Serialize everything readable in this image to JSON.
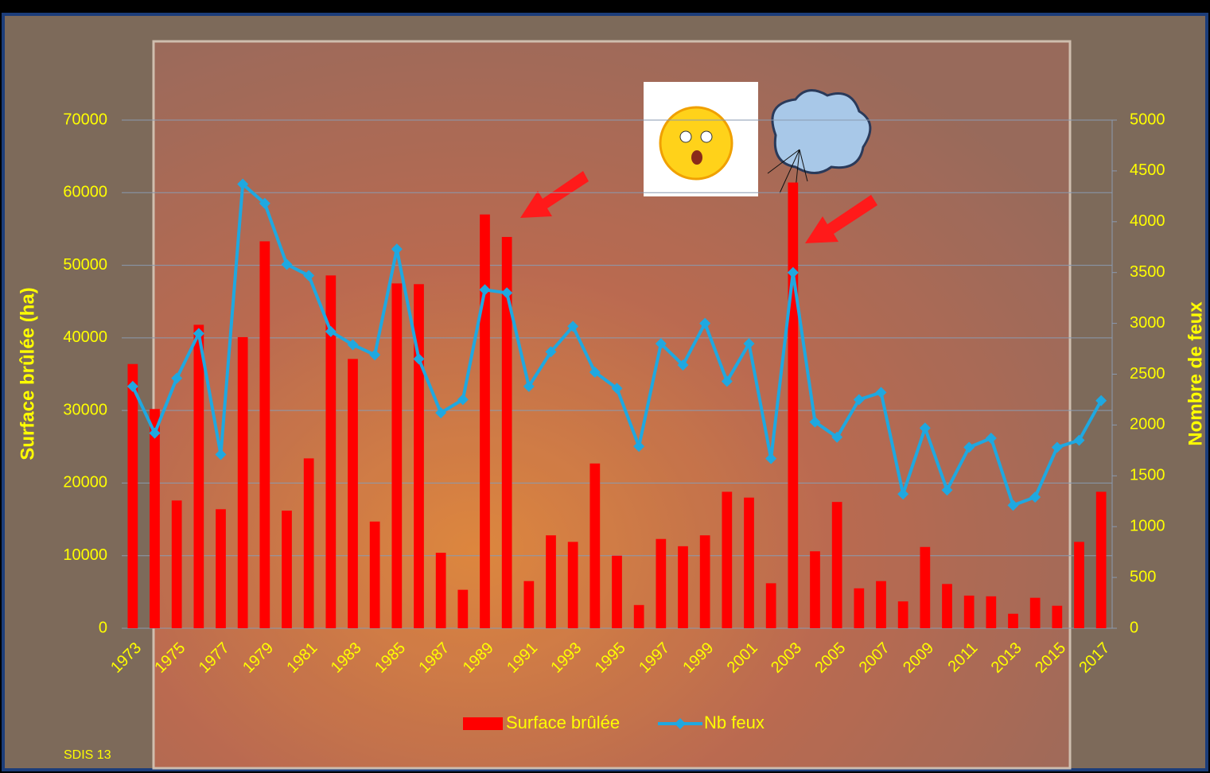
{
  "chart_data": {
    "type": "bar",
    "categories": [
      "1973",
      null,
      "1975",
      null,
      "1977",
      null,
      "1979",
      null,
      "1981",
      null,
      "1983",
      null,
      "1985",
      null,
      "1987",
      null,
      "1989",
      null,
      "1991",
      null,
      "1993",
      null,
      "1995",
      null,
      "1997",
      null,
      "1999",
      null,
      "2001",
      null,
      "2003",
      null,
      "2005",
      null,
      "2007",
      null,
      "2009",
      null,
      "2011",
      null,
      "2013",
      null,
      "2015",
      null,
      "2017"
    ],
    "series": [
      {
        "name": "Surface brûlée",
        "type": "bar",
        "color": "#ff0000",
        "values": [
          36400,
          30200,
          17600,
          41800,
          16400,
          40100,
          53300,
          16200,
          23400,
          48600,
          37100,
          14700,
          47500,
          47400,
          10400,
          5300,
          57000,
          53900,
          6500,
          12800,
          11900,
          22700,
          10000,
          3200,
          12300,
          11300,
          12800,
          18800,
          18000,
          6200,
          61400,
          10600,
          17400,
          5500,
          6500,
          3700,
          11200,
          6100,
          4500,
          4400,
          2000,
          4200,
          3100,
          11900,
          18800
        ]
      },
      {
        "name": "Nb feux",
        "type": "line",
        "axis": "y2",
        "color": "#1fa8e0",
        "values": [
          2380,
          1920,
          2460,
          2900,
          1710,
          4370,
          4180,
          3580,
          3470,
          2920,
          2790,
          2690,
          3730,
          2650,
          2120,
          2250,
          3330,
          3300,
          2380,
          2720,
          2970,
          2520,
          2360,
          1790,
          2800,
          2590,
          3000,
          2430,
          2800,
          1670,
          3500,
          2030,
          1880,
          2250,
          2320,
          1320,
          1970,
          1360,
          1780,
          1870,
          1210,
          1290,
          1780,
          1850,
          2240
        ]
      }
    ],
    "y_label": "Surface brûlée (ha)",
    "y2_label": "Nombre de feux",
    "ylim": [
      0,
      70000
    ],
    "yticks": [
      0,
      10000,
      20000,
      30000,
      40000,
      50000,
      60000,
      70000
    ],
    "y2lim": [
      0,
      5000
    ],
    "y2ticks": [
      0,
      500,
      1000,
      1500,
      2000,
      2500,
      3000,
      3500,
      4000,
      4500,
      5000
    ],
    "grid": true,
    "legend": "bottom",
    "source": "SDIS 13"
  }
}
